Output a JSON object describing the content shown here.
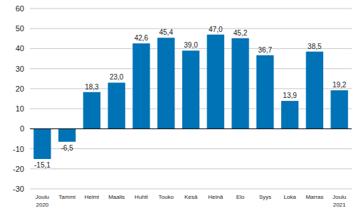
{
  "chart_data": {
    "type": "bar",
    "categories": [
      "Joulu 2020",
      "Tammi",
      "Helmi",
      "Maalis",
      "Huhti",
      "Touko",
      "Kesä",
      "Heinä",
      "Elo",
      "Syys",
      "Loka",
      "Marras",
      "Joulu 2021"
    ],
    "values": [
      -15.1,
      -6.5,
      18.3,
      23.0,
      42.6,
      45.4,
      39.0,
      47.0,
      45.2,
      36.7,
      13.9,
      38.5,
      19.2
    ],
    "value_labels": [
      "-15,1",
      "-6,5",
      "18,3",
      "23,0",
      "42,6",
      "45,4",
      "39,0",
      "47,0",
      "45,2",
      "36,7",
      "13,9",
      "38,5",
      "19,2"
    ],
    "color": "#0073b7",
    "ylim": [
      -30,
      60
    ],
    "yticks": [
      -30,
      -20,
      -10,
      0,
      10,
      20,
      30,
      40,
      50,
      60
    ],
    "grid": true,
    "data_labels": true
  }
}
